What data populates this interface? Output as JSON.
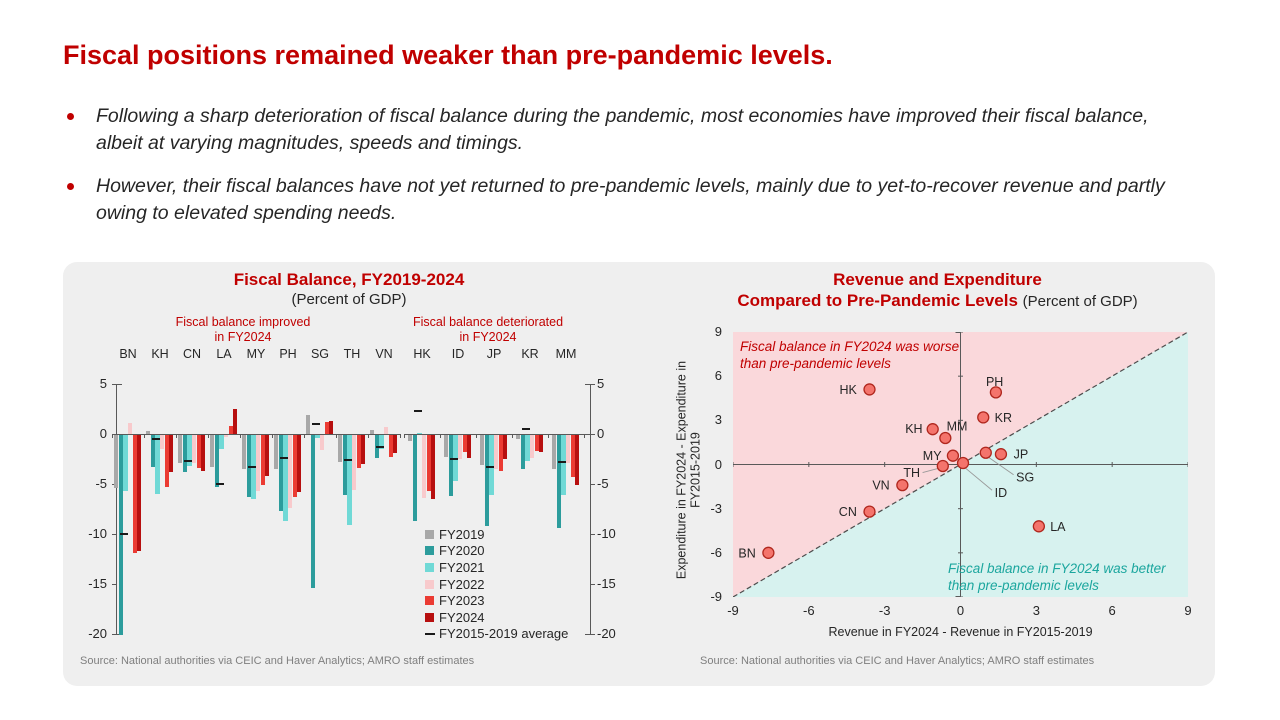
{
  "slide": {
    "title": "Fiscal positions remained weaker than pre-pandemic levels.",
    "bullets": [
      "Following a sharp deterioration of fiscal balance during the pandemic, most economies have improved their fiscal balance, albeit at varying magnitudes, speeds and timings.",
      "However, their fiscal balances have not yet returned to pre-pandemic levels, mainly due to yet-to-recover revenue and partly owing to elevated spending needs."
    ]
  },
  "colors": {
    "title_red": "#C00000",
    "panel_bg": "#EFEFEF",
    "axis": "#595959",
    "source_gray": "#7F7F7F",
    "scatter_point_fill": "#F4746C",
    "scatter_point_stroke": "#B0271E",
    "region_worse_pink": "#FAD8DB",
    "region_better_cyan": "#D7F2EF",
    "diagonal_line": "#4D4D4D",
    "leader_line": "#999999",
    "better_annotation_teal": "#1BA69E"
  },
  "chart_data": [
    {
      "type": "bar",
      "title": "Fiscal Balance, FY2019-2024",
      "subtitle": "(Percent of GDP)",
      "captions": [
        {
          "line1": "Fiscal balance improved",
          "line2": "in FY2024"
        },
        {
          "line1": "Fiscal balance deteriorated",
          "line2": "in FY2024"
        }
      ],
      "categories": [
        "BN",
        "KH",
        "CN",
        "LA",
        "MY",
        "PH",
        "SG",
        "TH",
        "VN",
        "HK",
        "ID",
        "JP",
        "KR",
        "MM"
      ],
      "group_split_index": 9,
      "ylim": [
        -20,
        5
      ],
      "yticks": [
        5,
        0,
        -5,
        -10,
        -15,
        -20
      ],
      "series": [
        {
          "name": "FY2019",
          "color": "#A8A8A8",
          "values": [
            -5.3,
            0.3,
            -2.8,
            -3.2,
            -3.4,
            -3.4,
            1.9,
            -2.7,
            0.4,
            -0.6,
            -2.2,
            -3.0,
            -0.4,
            -3.4
          ]
        },
        {
          "name": "FY2020",
          "color": "#2C9C9C",
          "values": [
            -20.0,
            -3.2,
            -3.7,
            -5.2,
            -6.2,
            -7.6,
            -15.3,
            -6.0,
            -2.3,
            -8.6,
            -6.1,
            -9.1,
            -3.4,
            -9.3
          ]
        },
        {
          "name": "FY2021",
          "color": "#70D9D6",
          "values": [
            -5.6,
            -5.9,
            -3.1,
            -1.4,
            -6.4,
            -8.6,
            -0.3,
            -9.0,
            -1.4,
            0.1,
            -4.6,
            -6.0,
            -2.6,
            -6.0
          ]
        },
        {
          "name": "FY2022",
          "color": "#F8CACC",
          "values": [
            1.1,
            -1.4,
            -2.8,
            -0.2,
            -5.6,
            -7.3,
            -1.5,
            -5.5,
            0.7,
            -6.3,
            -2.4,
            -3.4,
            -2.3,
            -2.8
          ]
        },
        {
          "name": "FY2023",
          "color": "#EB3B33",
          "values": [
            -11.8,
            -5.2,
            -3.3,
            0.8,
            -5.0,
            -6.2,
            1.2,
            -3.3,
            -2.2,
            -5.6,
            -1.7,
            -3.6,
            -1.6,
            -4.2
          ]
        },
        {
          "name": "FY2024",
          "color": "#B70F0F",
          "values": [
            -11.6,
            -3.7,
            -3.6,
            2.5,
            -4.1,
            -5.7,
            1.3,
            -2.9,
            -1.8,
            -6.4,
            -2.3,
            -2.4,
            -1.7,
            -5.0
          ]
        }
      ],
      "average_series": {
        "name": "FY2015-2019 average",
        "color": "#1A1A1A",
        "values": [
          -10.0,
          -0.5,
          -2.7,
          -5.0,
          -3.3,
          -2.4,
          1.0,
          -2.6,
          -1.3,
          2.3,
          -2.5,
          -3.3,
          0.5,
          -2.8
        ]
      },
      "source": "Source: National authorities via CEIC and Haver Analytics; AMRO staff estimates"
    },
    {
      "type": "scatter",
      "title_line1": "Revenue and Expenditure",
      "title_line2": "Compared to Pre-Pandemic Levels",
      "title_suffix": "(Percent of GDP)",
      "xlabel": "Revenue in FY2024 - Revenue in FY2015-2019",
      "ylabel": "Expenditure in FY2024 - Expenditure in FY2015-2019",
      "xlim": [
        -9,
        9
      ],
      "ylim": [
        -9,
        9
      ],
      "ticks": [
        -9,
        -6,
        -3,
        0,
        3,
        6,
        9
      ],
      "diagonal_line": "y = x (dashed)",
      "annotations": {
        "worse": [
          "Fiscal balance in FY2024 was worse",
          "than pre-pandemic levels"
        ],
        "better": [
          "Fiscal balance in FY2024 was better",
          "than pre-pandemic levels"
        ]
      },
      "points": [
        {
          "label": "BN",
          "x": -7.6,
          "y": -6.0,
          "lx": -8.1,
          "ly": -6.0,
          "anchor": "end"
        },
        {
          "label": "CN",
          "x": -3.6,
          "y": -3.2,
          "lx": -4.1,
          "ly": -3.2,
          "anchor": "end"
        },
        {
          "label": "VN",
          "x": -2.3,
          "y": -1.4,
          "lx": -2.8,
          "ly": -1.4,
          "anchor": "end"
        },
        {
          "label": "HK",
          "x": -3.6,
          "y": 5.1,
          "lx": -4.1,
          "ly": 5.1,
          "anchor": "end"
        },
        {
          "label": "KH",
          "x": -1.1,
          "y": 2.4,
          "lx": -1.5,
          "ly": 2.45,
          "anchor": "end"
        },
        {
          "label": "MM",
          "x": -0.6,
          "y": 1.8,
          "lx": -0.55,
          "ly": 2.6,
          "anchor": "start"
        },
        {
          "label": "MY",
          "x": -0.3,
          "y": 0.6,
          "lx": -0.75,
          "ly": 0.6,
          "anchor": "end"
        },
        {
          "label": "TH",
          "x": -0.7,
          "y": -0.1,
          "lx": -1.6,
          "ly": -0.55,
          "anchor": "end",
          "leader": [
            [
              -1.5,
              -0.55
            ],
            [
              -0.85,
              -0.25
            ]
          ]
        },
        {
          "label": "ID",
          "x": 0.1,
          "y": 0.1,
          "lx": 1.35,
          "ly": -1.9,
          "anchor": "start",
          "leader": [
            [
              0.2,
              -0.25
            ],
            [
              1.25,
              -1.75
            ]
          ]
        },
        {
          "label": "SG",
          "x": 1.0,
          "y": 0.8,
          "lx": 2.2,
          "ly": -0.85,
          "anchor": "start",
          "leader": [
            [
              1.1,
              0.5
            ],
            [
              2.1,
              -0.7
            ]
          ]
        },
        {
          "label": "JP",
          "x": 1.6,
          "y": 0.7,
          "lx": 2.1,
          "ly": 0.7,
          "anchor": "start"
        },
        {
          "label": "KR",
          "x": 0.9,
          "y": 3.2,
          "lx": 1.35,
          "ly": 3.2,
          "anchor": "start"
        },
        {
          "label": "PH",
          "x": 1.4,
          "y": 4.9,
          "lx": 1.35,
          "ly": 5.65,
          "anchor": "middle"
        },
        {
          "label": "LA",
          "x": 3.1,
          "y": -4.2,
          "lx": 3.55,
          "ly": -4.2,
          "anchor": "start"
        }
      ],
      "source": "Source: National authorities via CEIC and Haver Analytics; AMRO staff estimates"
    }
  ]
}
